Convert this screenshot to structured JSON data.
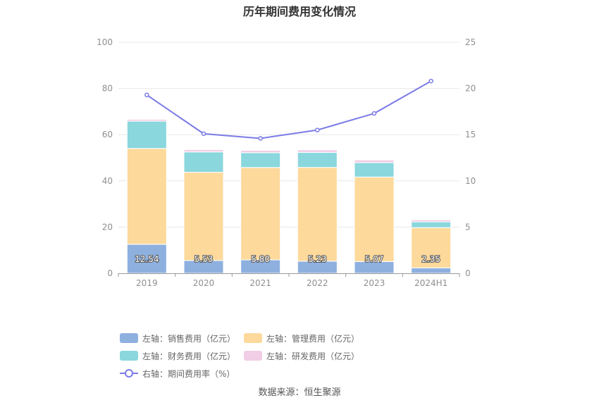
{
  "title": "历年期间费用变化情况",
  "source": "数据来源：恒生聚源",
  "colors": {
    "sales": "#8eb0df",
    "admin": "#fdd99b",
    "finance": "#8ad7dd",
    "rnd": "#f1cde6",
    "rate": "#7a7be6",
    "grid": "#e8e8e8",
    "axis": "#9a9a9a"
  },
  "legend": [
    {
      "key": "sales",
      "label": "左轴：销售费用（亿元）"
    },
    {
      "key": "admin",
      "label": "左轴：管理费用（亿元）"
    },
    {
      "key": "finance",
      "label": "左轴：财务费用（亿元）"
    },
    {
      "key": "rnd",
      "label": "左轴：研发费用（亿元）"
    },
    {
      "key": "rate",
      "label": "右轴：期间费用率（%）"
    }
  ],
  "chart_data": {
    "type": "bar",
    "stacked": true,
    "categories": [
      "2019",
      "2020",
      "2021",
      "2022",
      "2023",
      "2024H1"
    ],
    "left_axis": {
      "min": 0,
      "max": 100,
      "ticks": [
        0,
        20,
        40,
        60,
        80,
        100
      ]
    },
    "right_axis": {
      "min": 0,
      "max": 25,
      "ticks": [
        0,
        5,
        10,
        15,
        20,
        25
      ]
    },
    "grid": true,
    "legend_position": "bottom",
    "series": [
      {
        "key": "sales",
        "name": "左轴：销售费用（亿元）",
        "axis": "left",
        "type": "bar",
        "values": [
          12.54,
          5.53,
          5.8,
          5.23,
          5.07,
          2.35
        ],
        "labels": [
          "12.54",
          "5.53",
          "5.80",
          "5.23",
          "5.07",
          "2.35"
        ]
      },
      {
        "key": "admin",
        "name": "左轴：管理费用（亿元）",
        "axis": "left",
        "type": "bar",
        "values": [
          41.5,
          38.2,
          40.0,
          40.6,
          36.6,
          17.4
        ]
      },
      {
        "key": "finance",
        "name": "左轴：财务费用（亿元）",
        "axis": "left",
        "type": "bar",
        "values": [
          11.8,
          8.8,
          6.4,
          6.5,
          6.2,
          2.5
        ]
      },
      {
        "key": "rnd",
        "name": "左轴：研发费用（亿元）",
        "axis": "left",
        "type": "bar",
        "values": [
          0.8,
          1.0,
          1.0,
          1.1,
          1.2,
          0.9
        ]
      },
      {
        "key": "rate",
        "name": "右轴：期间费用率（%）",
        "axis": "right",
        "type": "line",
        "values": [
          19.3,
          15.1,
          14.6,
          15.5,
          17.3,
          20.8
        ]
      }
    ]
  }
}
